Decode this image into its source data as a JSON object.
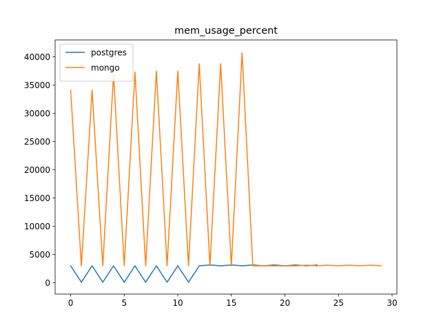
{
  "chart_data": {
    "type": "line",
    "title": "mem_usage_percent",
    "xlabel": "",
    "ylabel": "",
    "xlim": [
      -1.45,
      30.45
    ],
    "ylim": [
      -2000,
      43000
    ],
    "xticks": [
      0,
      5,
      10,
      15,
      20,
      25,
      30
    ],
    "yticks": [
      0,
      5000,
      10000,
      15000,
      20000,
      25000,
      30000,
      35000,
      40000
    ],
    "grid": false,
    "legend_position": "upper left",
    "series": [
      {
        "name": "postgres",
        "color": "#1f77b4",
        "x": [
          0,
          1,
          2,
          3,
          4,
          5,
          6,
          7,
          8,
          9,
          10,
          11,
          12,
          13,
          14,
          15,
          16,
          17,
          18,
          19,
          20,
          21,
          22,
          23
        ],
        "y": [
          3000,
          100,
          3000,
          100,
          3000,
          100,
          3000,
          100,
          3000,
          100,
          3000,
          100,
          3000,
          3150,
          3000,
          3150,
          3000,
          3150,
          3000,
          3150,
          3000,
          3150,
          3000,
          3150
        ]
      },
      {
        "name": "mongo",
        "color": "#ff7f0e",
        "x": [
          0,
          1,
          2,
          3,
          4,
          5,
          6,
          7,
          8,
          9,
          10,
          11,
          12,
          13,
          14,
          15,
          16,
          17,
          18,
          19,
          20,
          21,
          22,
          23,
          24,
          25,
          26,
          27,
          28,
          29
        ],
        "y": [
          34100,
          3000,
          34100,
          3000,
          37000,
          3000,
          37300,
          3000,
          37500,
          3000,
          37500,
          3000,
          38800,
          3000,
          38800,
          3000,
          40700,
          3000,
          3000,
          3000,
          3000,
          3000,
          3100,
          3000,
          3100,
          3000,
          3100,
          3000,
          3100,
          3000
        ]
      }
    ]
  }
}
